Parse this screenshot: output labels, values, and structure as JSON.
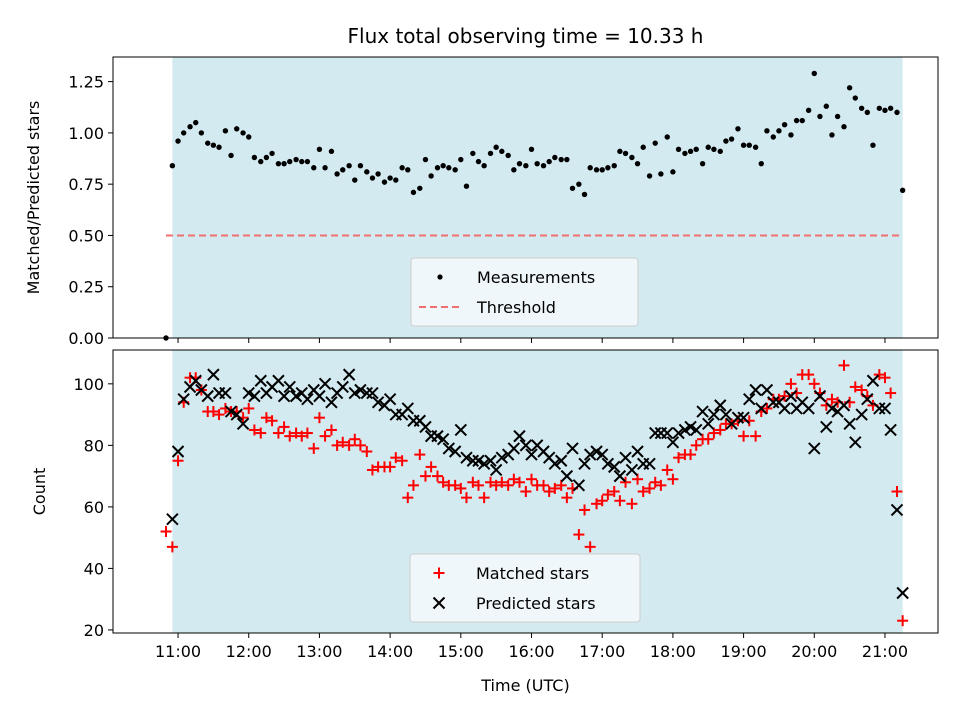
{
  "chart_data": [
    {
      "type": "scatter",
      "title": "Flux total observing time = 10.33 h",
      "xlabel": "",
      "ylabel": "Matched/Predicted stars",
      "ylim": [
        0,
        1.37
      ],
      "yticks": [
        0.0,
        0.25,
        0.5,
        0.75,
        1.0,
        1.25
      ],
      "ytick_labels": [
        "0.00",
        "0.25",
        "0.50",
        "0.75",
        "1.00",
        "1.25"
      ],
      "x_unit": "hours UTC",
      "observing_window": [
        10.92,
        21.25
      ],
      "series": [
        {
          "name": "Measurements",
          "marker": "dot",
          "color": "#000000",
          "x": [
            10.83,
            10.92,
            11.0,
            11.08,
            11.17,
            11.25,
            11.33,
            11.42,
            11.5,
            11.58,
            11.67,
            11.75,
            11.83,
            11.92,
            12.0,
            12.08,
            12.17,
            12.25,
            12.33,
            12.42,
            12.5,
            12.58,
            12.67,
            12.75,
            12.83,
            12.92,
            13.0,
            13.08,
            13.17,
            13.25,
            13.33,
            13.42,
            13.5,
            13.58,
            13.67,
            13.75,
            13.83,
            13.92,
            14.0,
            14.08,
            14.17,
            14.25,
            14.33,
            14.42,
            14.5,
            14.58,
            14.67,
            14.75,
            14.83,
            14.92,
            15.0,
            15.08,
            15.17,
            15.25,
            15.33,
            15.42,
            15.5,
            15.58,
            15.67,
            15.75,
            15.83,
            15.92,
            16.0,
            16.08,
            16.17,
            16.25,
            16.33,
            16.42,
            16.5,
            16.58,
            16.67,
            16.75,
            16.83,
            16.92,
            17.0,
            17.08,
            17.17,
            17.25,
            17.33,
            17.42,
            17.5,
            17.58,
            17.67,
            17.75,
            17.83,
            17.92,
            18.0,
            18.08,
            18.17,
            18.25,
            18.33,
            18.42,
            18.5,
            18.58,
            18.67,
            18.75,
            18.83,
            18.92,
            19.0,
            19.08,
            19.17,
            19.25,
            19.33,
            19.42,
            19.5,
            19.58,
            19.67,
            19.75,
            19.83,
            19.92,
            20.0,
            20.08,
            20.17,
            20.25,
            20.33,
            20.42,
            20.5,
            20.58,
            20.67,
            20.75,
            20.83,
            20.92,
            21.0,
            21.08,
            21.17,
            21.25
          ],
          "y": [
            0.0,
            0.84,
            0.96,
            1.0,
            1.03,
            1.05,
            1.0,
            0.95,
            0.94,
            0.93,
            1.01,
            0.89,
            1.02,
            1.0,
            0.98,
            0.88,
            0.86,
            0.88,
            0.9,
            0.85,
            0.85,
            0.86,
            0.87,
            0.86,
            0.86,
            0.83,
            0.92,
            0.83,
            0.91,
            0.8,
            0.82,
            0.84,
            0.77,
            0.84,
            0.81,
            0.78,
            0.8,
            0.76,
            0.78,
            0.77,
            0.83,
            0.82,
            0.71,
            0.73,
            0.87,
            0.79,
            0.83,
            0.84,
            0.83,
            0.82,
            0.87,
            0.74,
            0.9,
            0.86,
            0.84,
            0.9,
            0.93,
            0.91,
            0.89,
            0.82,
            0.85,
            0.84,
            0.92,
            0.85,
            0.84,
            0.86,
            0.88,
            0.87,
            0.87,
            0.73,
            0.75,
            0.7,
            0.83,
            0.82,
            0.82,
            0.83,
            0.84,
            0.91,
            0.9,
            0.88,
            0.85,
            0.93,
            0.79,
            0.95,
            0.8,
            0.98,
            0.81,
            0.92,
            0.9,
            0.91,
            0.92,
            0.85,
            0.93,
            0.92,
            0.91,
            0.96,
            0.97,
            1.02,
            0.94,
            0.94,
            0.93,
            0.85,
            1.01,
            0.98,
            1.01,
            1.04,
            0.99,
            1.06,
            1.06,
            1.11,
            1.29,
            1.08,
            1.13,
            0.99,
            1.08,
            1.03,
            1.22,
            1.17,
            1.12,
            1.1,
            0.94,
            1.12,
            1.11,
            1.12,
            1.1,
            0.72
          ]
        },
        {
          "name": "Threshold",
          "marker": "dashed-line",
          "color": "#f07070",
          "x": [
            10.83,
            21.25
          ],
          "y": [
            0.5,
            0.5
          ]
        }
      ],
      "legend": [
        "Measurements",
        "Threshold"
      ],
      "legend_position": "bottom-center"
    },
    {
      "type": "scatter",
      "title": "",
      "xlabel": "Time (UTC)",
      "ylabel": "Count",
      "ylim": [
        19,
        111
      ],
      "yticks": [
        20,
        40,
        60,
        80,
        100
      ],
      "ytick_labels": [
        "20",
        "40",
        "60",
        "80",
        "100"
      ],
      "xlim": [
        10.08,
        21.75
      ],
      "xticks": [
        11,
        12,
        13,
        14,
        15,
        16,
        17,
        18,
        19,
        20,
        21
      ],
      "xtick_labels": [
        "11:00",
        "12:00",
        "13:00",
        "14:00",
        "15:00",
        "16:00",
        "17:00",
        "18:00",
        "19:00",
        "20:00",
        "21:00"
      ],
      "x_unit": "hours UTC",
      "observing_window": [
        10.92,
        21.25
      ],
      "series": [
        {
          "name": "Matched stars",
          "marker": "plus",
          "color": "#ff0000",
          "x": [
            10.83,
            10.92,
            11.0,
            11.08,
            11.17,
            11.25,
            11.33,
            11.42,
            11.5,
            11.58,
            11.67,
            11.75,
            11.83,
            11.92,
            12.0,
            12.08,
            12.17,
            12.25,
            12.33,
            12.42,
            12.5,
            12.58,
            12.67,
            12.75,
            12.83,
            12.92,
            13.0,
            13.08,
            13.17,
            13.25,
            13.33,
            13.42,
            13.5,
            13.58,
            13.67,
            13.75,
            13.83,
            13.92,
            14.0,
            14.08,
            14.17,
            14.25,
            14.33,
            14.42,
            14.5,
            14.58,
            14.67,
            14.75,
            14.83,
            14.92,
            15.0,
            15.08,
            15.17,
            15.25,
            15.33,
            15.42,
            15.5,
            15.58,
            15.67,
            15.75,
            15.83,
            15.92,
            16.0,
            16.08,
            16.17,
            16.25,
            16.33,
            16.42,
            16.5,
            16.58,
            16.67,
            16.75,
            16.83,
            16.92,
            17.0,
            17.08,
            17.17,
            17.25,
            17.33,
            17.42,
            17.5,
            17.58,
            17.67,
            17.75,
            17.83,
            17.92,
            18.0,
            18.08,
            18.17,
            18.25,
            18.33,
            18.42,
            18.5,
            18.58,
            18.67,
            18.75,
            18.83,
            18.92,
            19.0,
            19.08,
            19.17,
            19.25,
            19.33,
            19.42,
            19.5,
            19.58,
            19.67,
            19.75,
            19.83,
            19.92,
            20.0,
            20.08,
            20.17,
            20.25,
            20.33,
            20.42,
            20.5,
            20.58,
            20.67,
            20.75,
            20.83,
            20.92,
            21.0,
            21.08,
            21.17,
            21.25
          ],
          "y": [
            52,
            47,
            75,
            94,
            102,
            102,
            98,
            91,
            91,
            90,
            92,
            91,
            91,
            89,
            92,
            85,
            84,
            89,
            88,
            84,
            86,
            83,
            84,
            83,
            84,
            79,
            89,
            83,
            85,
            80,
            81,
            80,
            82,
            80,
            78,
            72,
            73,
            73,
            73,
            76,
            75,
            63,
            67,
            77,
            70,
            73,
            70,
            68,
            67,
            67,
            66,
            63,
            68,
            67,
            63,
            68,
            67,
            68,
            67,
            69,
            68,
            65,
            69,
            67,
            67,
            65,
            66,
            67,
            63,
            66,
            51,
            59,
            47,
            61,
            62,
            64,
            65,
            62,
            68,
            61,
            69,
            65,
            66,
            68,
            67,
            72,
            69,
            76,
            77,
            77,
            80,
            82,
            82,
            84,
            85,
            87,
            87,
            88,
            83,
            88,
            83,
            91,
            92,
            95,
            95,
            96,
            100,
            97,
            103,
            103,
            100,
            97,
            93,
            95,
            94,
            106,
            94,
            99,
            98,
            96,
            93,
            103,
            102,
            97,
            65,
            23
          ]
        },
        {
          "name": "Predicted stars",
          "marker": "x",
          "color": "#000000",
          "x": [
            10.92,
            11.0,
            11.08,
            11.17,
            11.25,
            11.33,
            11.42,
            11.5,
            11.58,
            11.67,
            11.75,
            11.83,
            11.92,
            12.0,
            12.08,
            12.17,
            12.25,
            12.33,
            12.42,
            12.5,
            12.58,
            12.67,
            12.75,
            12.83,
            12.92,
            13.0,
            13.08,
            13.17,
            13.25,
            13.33,
            13.42,
            13.5,
            13.58,
            13.67,
            13.75,
            13.83,
            13.92,
            14.0,
            14.08,
            14.17,
            14.25,
            14.33,
            14.42,
            14.5,
            14.58,
            14.67,
            14.75,
            14.83,
            14.92,
            15.0,
            15.08,
            15.17,
            15.25,
            15.33,
            15.42,
            15.5,
            15.58,
            15.67,
            15.75,
            15.83,
            15.92,
            16.0,
            16.08,
            16.17,
            16.25,
            16.33,
            16.42,
            16.5,
            16.58,
            16.67,
            16.75,
            16.83,
            16.92,
            17.0,
            17.08,
            17.17,
            17.25,
            17.33,
            17.42,
            17.5,
            17.58,
            17.67,
            17.75,
            17.83,
            17.92,
            18.0,
            18.08,
            18.17,
            18.25,
            18.33,
            18.42,
            18.5,
            18.58,
            18.67,
            18.75,
            18.83,
            18.92,
            19.0,
            19.08,
            19.17,
            19.25,
            19.33,
            19.42,
            19.5,
            19.58,
            19.67,
            19.75,
            19.83,
            19.92,
            20.0,
            20.08,
            20.17,
            20.25,
            20.33,
            20.42,
            20.5,
            20.58,
            20.67,
            20.75,
            20.83,
            20.92,
            21.0,
            21.08,
            21.17,
            21.25
          ],
          "y": [
            56,
            78,
            95,
            99,
            101,
            98,
            96,
            103,
            97,
            97,
            91,
            90,
            87,
            97,
            96,
            101,
            97,
            99,
            101,
            96,
            99,
            96,
            97,
            95,
            98,
            96,
            100,
            94,
            97,
            99,
            103,
            97,
            98,
            97,
            97,
            94,
            93,
            95,
            90,
            90,
            92,
            88,
            88,
            86,
            83,
            83,
            82,
            79,
            78,
            85,
            76,
            75,
            75,
            74,
            75,
            72,
            76,
            77,
            79,
            83,
            80,
            77,
            80,
            78,
            76,
            74,
            75,
            70,
            79,
            67,
            74,
            77,
            78,
            77,
            74,
            73,
            70,
            76,
            72,
            78,
            74,
            74,
            84,
            84,
            84,
            81,
            84,
            85,
            86,
            85,
            91,
            87,
            90,
            93,
            90,
            87,
            89,
            89,
            95,
            98,
            92,
            98,
            94,
            94,
            92,
            96,
            92,
            94,
            92,
            79,
            96,
            86,
            92,
            91,
            93,
            87,
            81,
            90,
            95,
            101,
            92,
            92,
            85,
            59,
            32
          ]
        }
      ],
      "legend": [
        "Matched stars",
        "Predicted stars"
      ],
      "legend_position": "bottom-center"
    }
  ],
  "colors": {
    "observing_band": "#d3eaf1",
    "measurements": "#000000",
    "threshold": "#f07070",
    "matched": "#ff0000",
    "predicted": "#000000"
  }
}
